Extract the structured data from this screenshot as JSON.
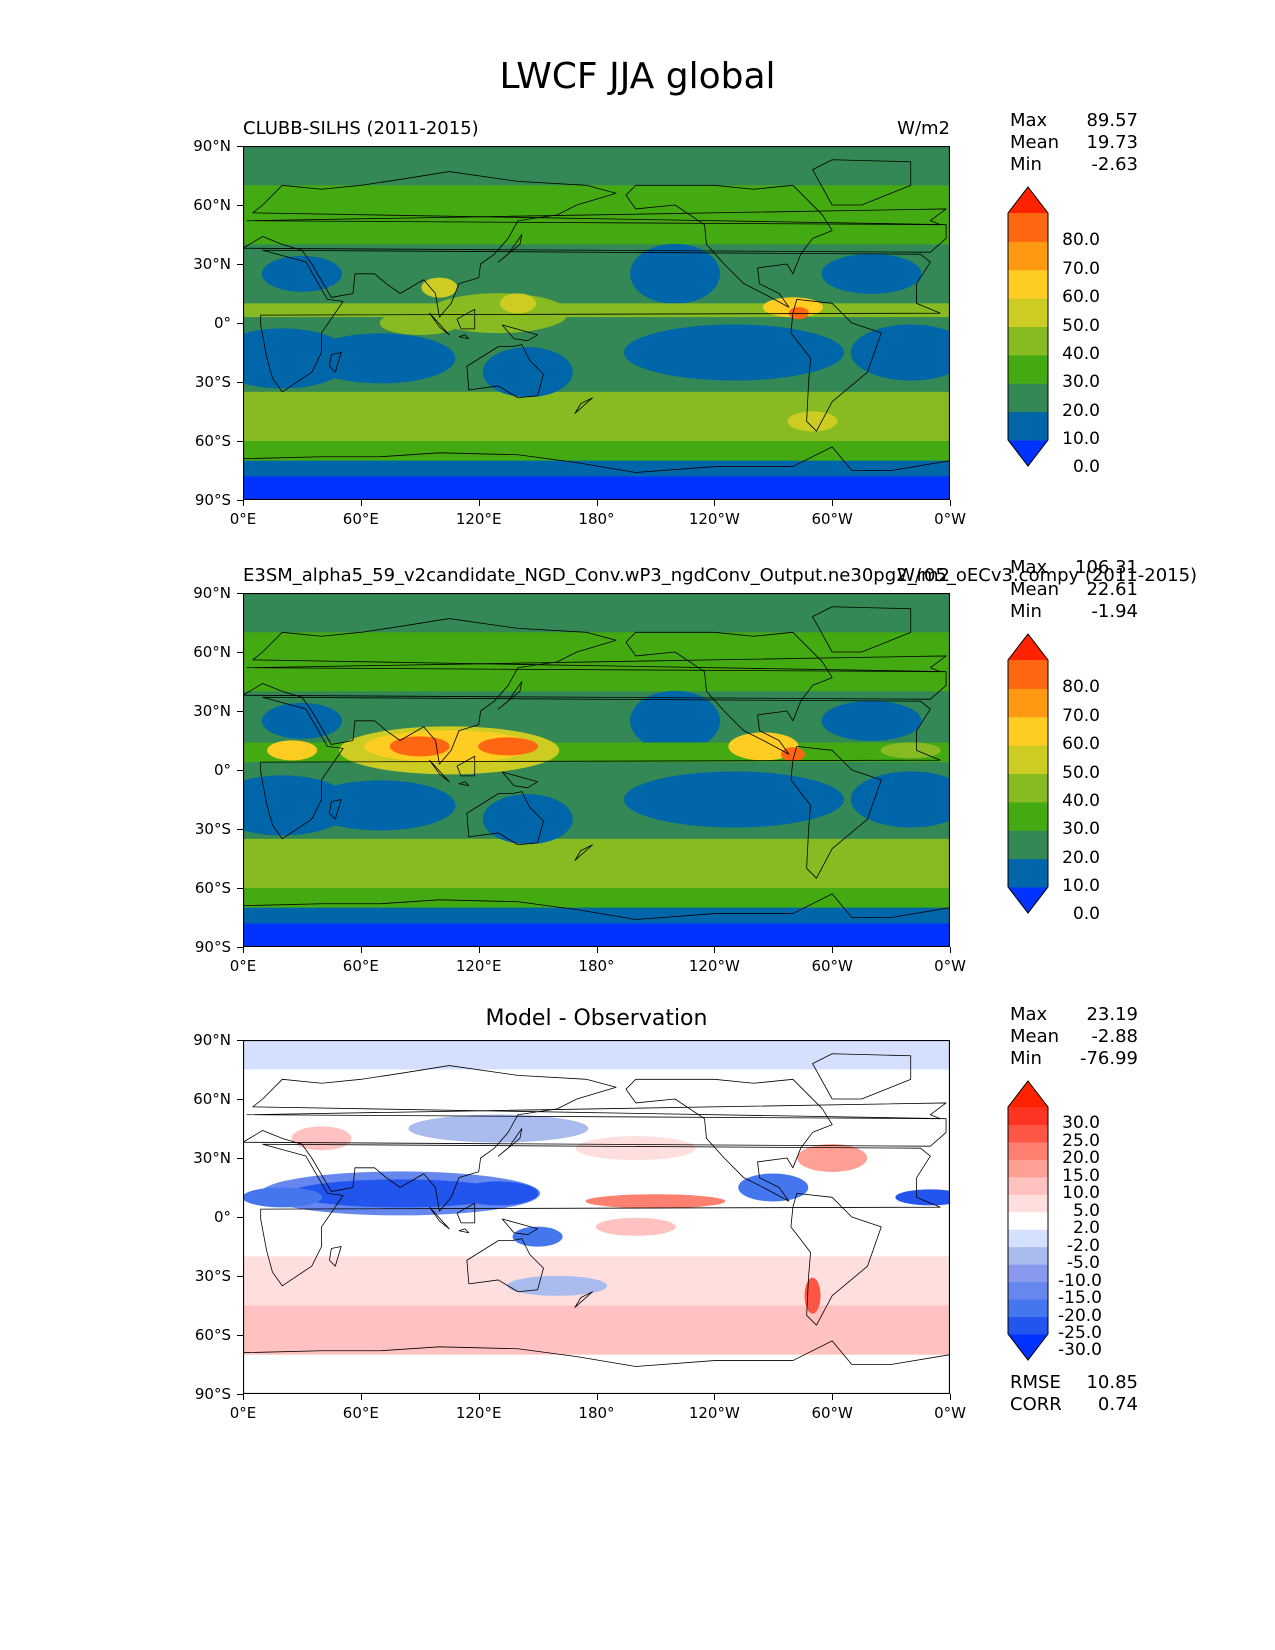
{
  "title": "LWCF JJA global",
  "ticks": {
    "lat": [
      "90°N",
      "60°N",
      "30°N",
      "0°",
      "30°S",
      "60°S",
      "90°S"
    ],
    "lon": [
      "0°E",
      "60°E",
      "120°E",
      "180°",
      "120°W",
      "60°W",
      "0°W"
    ]
  },
  "panels": [
    {
      "left_title": "CLUBB-SILHS (2011-2015)",
      "right_title": "W/m2",
      "center_title": "",
      "stats": {
        "max_label": "Max",
        "max": "89.57",
        "mean_label": "Mean",
        "mean": "19.73",
        "min_label": "Min",
        "min": "-2.63"
      },
      "colorbar": [
        "80.0",
        "70.0",
        "60.0",
        "50.0",
        "40.0",
        "30.0",
        "20.0",
        "10.0",
        "0.0"
      ]
    },
    {
      "left_title": "E3SM_alpha5_59_v2candidate_NGD_Conv.wP3_ngdConv_Output.ne30pg2_r05_oECv3.compy (2011-2015)",
      "right_title": "W/m2",
      "center_title": "",
      "stats": {
        "max_label": "Max",
        "max": "106.31",
        "mean_label": "Mean",
        "mean": "22.61",
        "min_label": "Min",
        "min": "-1.94"
      },
      "colorbar": [
        "80.0",
        "70.0",
        "60.0",
        "50.0",
        "40.0",
        "30.0",
        "20.0",
        "10.0",
        "0.0"
      ]
    },
    {
      "left_title": "",
      "right_title": "",
      "center_title": "Model - Observation",
      "stats": {
        "max_label": "Max",
        "max": "23.19",
        "mean_label": "Mean",
        "mean": "-2.88",
        "min_label": "Min",
        "min": "-76.99"
      },
      "colorbar": [
        "30.0",
        "25.0",
        "20.0",
        "15.0",
        "10.0",
        "5.0",
        "2.0",
        "-2.0",
        "-5.0",
        "-10.0",
        "-15.0",
        "-20.0",
        "-25.0",
        "-30.0"
      ],
      "metrics": {
        "rmse_label": "RMSE",
        "rmse": "10.85",
        "corr_label": "CORR",
        "corr": "0.74"
      }
    }
  ],
  "colors": {
    "abs_levels": [
      "#0033ff",
      "#0066aa",
      "#338855",
      "#44aa11",
      "#88bb22",
      "#cccc22",
      "#ffcc22",
      "#ff9911",
      "#ff6611",
      "#ff2200"
    ],
    "diff_levels": [
      "#0033ff",
      "#2255ee",
      "#4477ee",
      "#6688ee",
      "#8899ee",
      "#aabbee",
      "#d5e0ff",
      "#ffffff",
      "#ffdede",
      "#ffc2c0",
      "#ffa095",
      "#ff8070",
      "#ff5544",
      "#ff3322",
      "#ff2200"
    ]
  }
}
